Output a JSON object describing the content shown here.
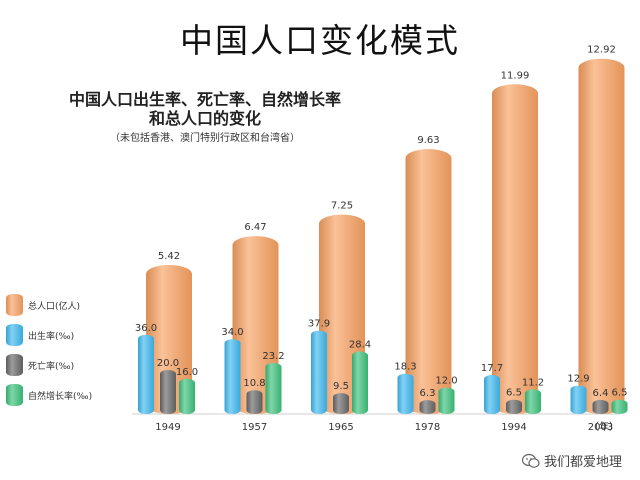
{
  "title": "中国人口变化模式",
  "chart_data": {
    "type": "bar",
    "title_lines": [
      "中国人口出生率、死亡率、自然增长率",
      "和总人口的变化"
    ],
    "note": "（未包括香港、澳门特别行政区和台湾省）",
    "categories": [
      "1949",
      "1957",
      "1965",
      "1978",
      "1994",
      "2003"
    ],
    "x_unit": "（年）",
    "series": [
      {
        "name": "总人口(亿人)",
        "color": "#f7a060",
        "values": [
          5.42,
          6.47,
          7.25,
          9.63,
          11.99,
          12.92
        ],
        "labels": [
          "5.42",
          "6.47",
          "7.25",
          "9.63",
          "11.99",
          "12.92"
        ]
      },
      {
        "name": "出生率(‰)",
        "color": "#3fb8ee",
        "values": [
          36.0,
          34.0,
          37.9,
          18.3,
          17.7,
          12.9
        ],
        "labels": [
          "36.0",
          "34.0",
          "37.9",
          "18.3",
          "17.7",
          "12.9"
        ]
      },
      {
        "name": "死亡率(‰)",
        "color": "#666666",
        "values": [
          20.0,
          10.8,
          9.5,
          6.3,
          6.5,
          6.4
        ],
        "labels": [
          "20.0",
          "10.8",
          "9.5",
          "6.3",
          "6.5",
          "6.4"
        ]
      },
      {
        "name": "自然增长率(‰)",
        "color": "#3cc07a",
        "values": [
          16.0,
          23.2,
          28.4,
          12.0,
          11.2,
          6.5
        ],
        "labels": [
          "16.0",
          "23.2",
          "28.4",
          "12.0",
          "11.2",
          "6.5"
        ]
      }
    ],
    "legend_position": "left"
  },
  "watermark": "我们都爱地理"
}
